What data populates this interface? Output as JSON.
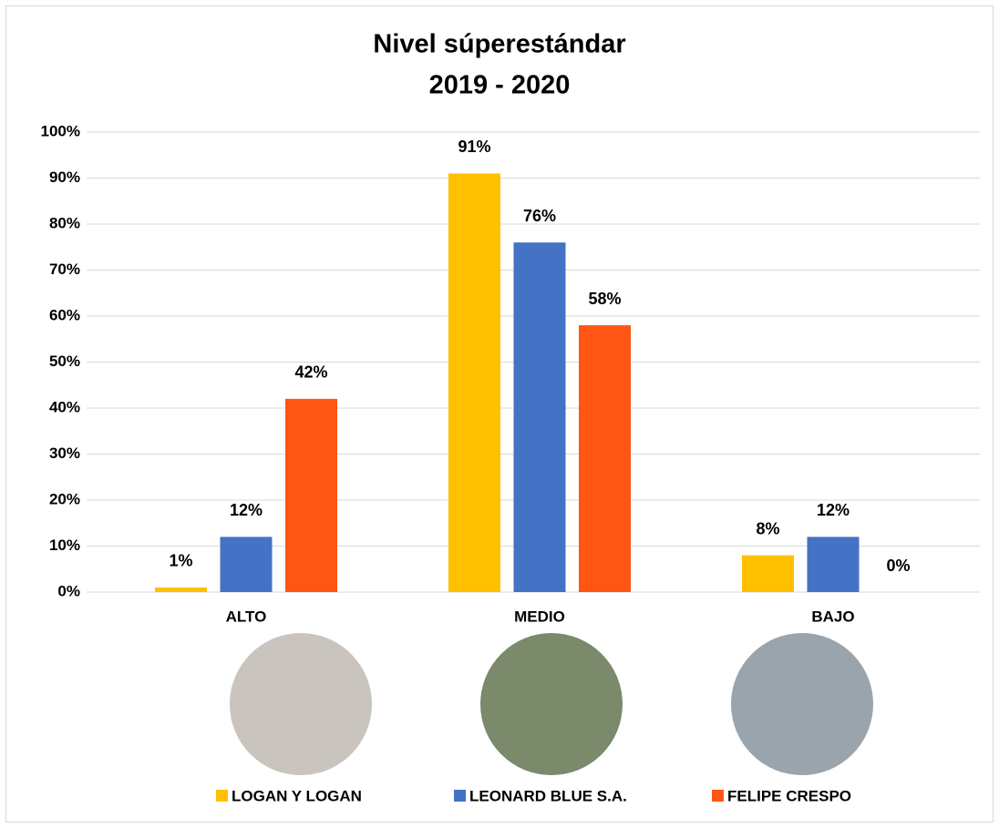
{
  "chart_data": {
    "type": "bar",
    "title": "Nivel súperestándar",
    "subtitle": "2019 - 2020",
    "categories": [
      "ALTO",
      "MEDIO",
      "BAJO"
    ],
    "series": [
      {
        "name": "LOGAN Y LOGAN",
        "color": "#FFC000",
        "values": [
          1,
          91,
          8
        ],
        "value_labels": [
          "1%",
          "91%",
          "8%"
        ]
      },
      {
        "name": "LEONARD BLUE S.A.",
        "color": "#4472C4",
        "values": [
          12,
          76,
          12
        ],
        "value_labels": [
          "12%",
          "76%",
          "12%"
        ]
      },
      {
        "name": "FELIPE CRESPO",
        "color": "#FF5515",
        "values": [
          42,
          58,
          0
        ],
        "value_labels": [
          "42%",
          "58%",
          "0%"
        ]
      }
    ],
    "ylim": [
      0,
      100
    ],
    "yticks": [
      {
        "value": 0,
        "label": "0%"
      },
      {
        "value": 10,
        "label": "10%"
      },
      {
        "value": 20,
        "label": "20%"
      },
      {
        "value": 30,
        "label": "30%"
      },
      {
        "value": 40,
        "label": "40%"
      },
      {
        "value": 50,
        "label": "50%"
      },
      {
        "value": 60,
        "label": "60%"
      },
      {
        "value": 70,
        "label": "70%"
      },
      {
        "value": 80,
        "label": "80%"
      },
      {
        "value": 90,
        "label": "90%"
      },
      {
        "value": 100,
        "label": "100%"
      }
    ],
    "grid": true,
    "legend": "bottom"
  }
}
